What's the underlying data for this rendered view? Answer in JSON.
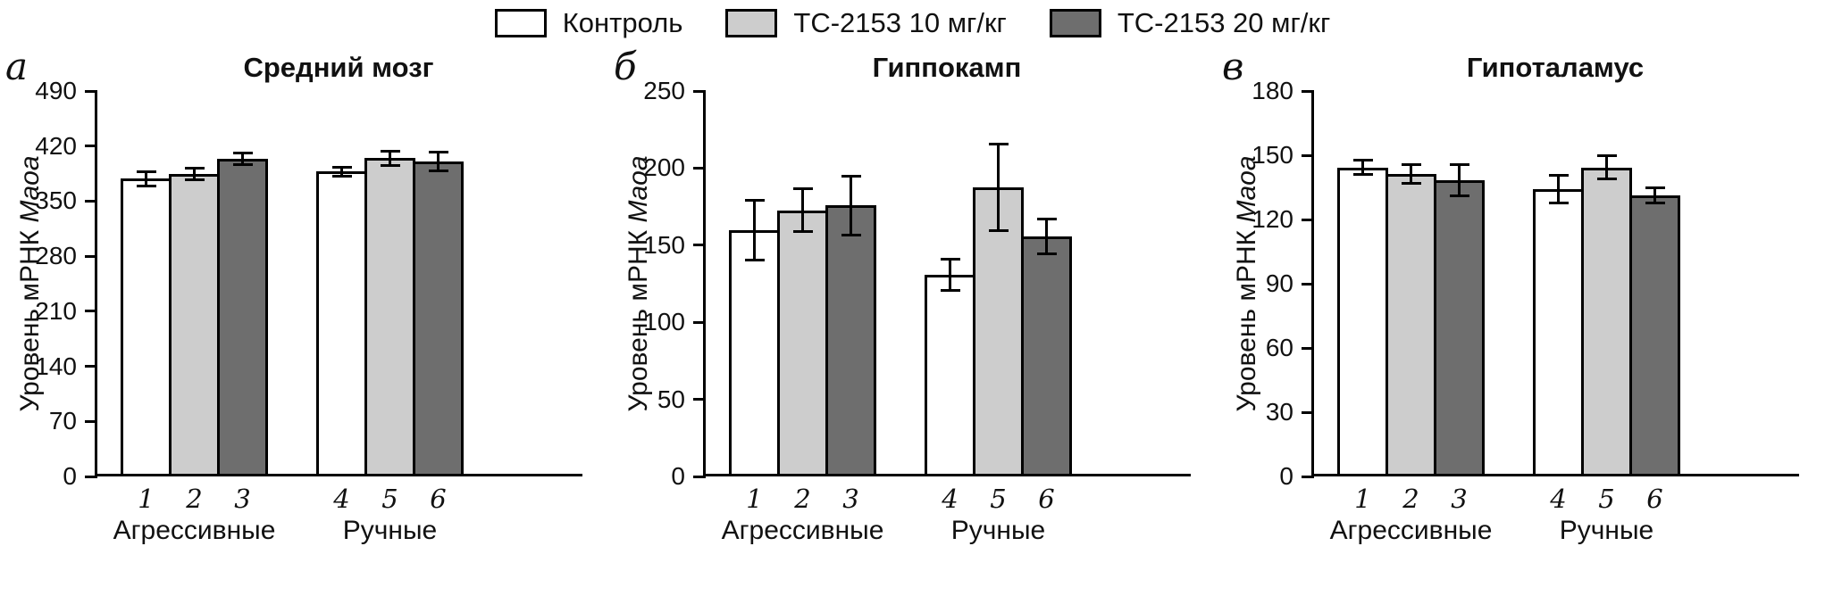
{
  "legend": {
    "items": [
      {
        "label": "Контроль",
        "color": "#ffffff"
      },
      {
        "label": "ТС-2153 10 мг/кг",
        "color": "#cdcdcd"
      },
      {
        "label": "ТС-2153 20 мг/кг",
        "color": "#6e6e6e"
      }
    ]
  },
  "chart_data": [
    {
      "type": "bar",
      "panel_letter": "а",
      "title": "Средний мозг",
      "ylabel": "Уровень мРНК Maoa",
      "ylabel_prefix": "Уровень мРНК",
      "ylabel_gene": "Maoa",
      "ylim": [
        0,
        490
      ],
      "yticks": [
        0,
        70,
        140,
        210,
        280,
        350,
        420,
        490
      ],
      "grid": false,
      "legend_position": "top",
      "series_names": [
        "Контроль",
        "ТС-2153 10 мг/кг",
        "ТС-2153 20 мг/кг"
      ],
      "groups": [
        {
          "label": "Агрессивные",
          "bars": [
            {
              "x": "1",
              "series": "Контроль",
              "value": 375,
              "error": 11
            },
            {
              "x": "2",
              "series": "ТС-2153 10 мг/кг",
              "value": 381,
              "error": 9
            },
            {
              "x": "3",
              "series": "ТС-2153 20 мг/кг",
              "value": 400,
              "error": 9
            }
          ]
        },
        {
          "label": "Ручные",
          "bars": [
            {
              "x": "4",
              "series": "Контроль",
              "value": 384,
              "error": 7
            },
            {
              "x": "5",
              "series": "ТС-2153 10 мг/кг",
              "value": 401,
              "error": 11
            },
            {
              "x": "6",
              "series": "ТС-2153 20 мг/кг",
              "value": 397,
              "error": 14
            }
          ]
        }
      ]
    },
    {
      "type": "bar",
      "panel_letter": "б",
      "title": "Гиппокамп",
      "ylabel": "Уровень мРНК Maoa",
      "ylabel_prefix": "Уровень мРНК",
      "ylabel_gene": "Maoa",
      "ylim": [
        0,
        250
      ],
      "yticks": [
        0,
        50,
        100,
        150,
        200,
        250
      ],
      "grid": false,
      "legend_position": "top",
      "series_names": [
        "Контроль",
        "ТС-2153 10 мг/кг",
        "ТС-2153 20 мг/кг"
      ],
      "groups": [
        {
          "label": "Агрессивные",
          "bars": [
            {
              "x": "1",
              "series": "Контроль",
              "value": 158,
              "error": 20
            },
            {
              "x": "2",
              "series": "ТС-2153 10 мг/кг",
              "value": 171,
              "error": 15
            },
            {
              "x": "3",
              "series": "ТС-2153 20 мг/кг",
              "value": 174,
              "error": 20
            }
          ]
        },
        {
          "label": "Ручные",
          "bars": [
            {
              "x": "4",
              "series": "Контроль",
              "value": 129,
              "error": 11
            },
            {
              "x": "5",
              "series": "ТС-2153 10 мг/кг",
              "value": 186,
              "error": 29
            },
            {
              "x": "6",
              "series": "ТС-2153 20 мг/кг",
              "value": 154,
              "error": 12
            }
          ]
        }
      ]
    },
    {
      "type": "bar",
      "panel_letter": "в",
      "title": "Гипоталамус",
      "ylabel": "Уровень мРНК Maoa",
      "ylabel_prefix": "Уровень мРНК",
      "ylabel_gene": "Maoa",
      "ylim": [
        0,
        180
      ],
      "yticks": [
        0,
        30,
        60,
        90,
        120,
        150,
        180
      ],
      "grid": false,
      "legend_position": "top",
      "series_names": [
        "Контроль",
        "ТС-2153 10 мг/кг",
        "ТС-2153 20 мг/кг"
      ],
      "groups": [
        {
          "label": "Агрессивные",
          "bars": [
            {
              "x": "1",
              "series": "Контроль",
              "value": 143,
              "error": 4
            },
            {
              "x": "2",
              "series": "ТС-2153 10 мг/кг",
              "value": 140,
              "error": 5
            },
            {
              "x": "3",
              "series": "ТС-2153 20 мг/кг",
              "value": 137,
              "error": 8
            }
          ]
        },
        {
          "label": "Ручные",
          "bars": [
            {
              "x": "4",
              "series": "Контроль",
              "value": 133,
              "error": 7
            },
            {
              "x": "5",
              "series": "ТС-2153 10 мг/кг",
              "value": 143,
              "error": 6
            },
            {
              "x": "6",
              "series": "ТС-2153 20 мг/кг",
              "value": 130,
              "error": 4
            }
          ]
        }
      ]
    }
  ]
}
